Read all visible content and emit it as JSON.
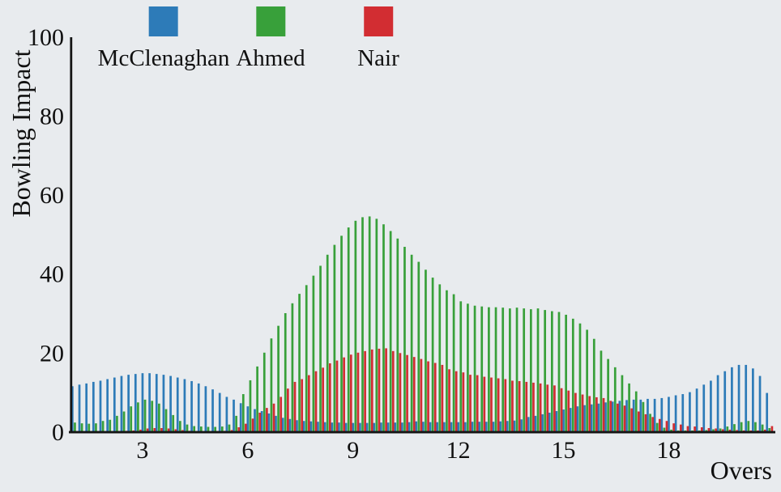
{
  "figure": {
    "background_color": "#e8ebee",
    "text_color": "#101010",
    "axis_color": "#141414"
  },
  "legend": {
    "items": [
      {
        "label": "McClenaghan",
        "color": "#2d7bb8"
      },
      {
        "label": "Ahmed",
        "color": "#38a03a"
      },
      {
        "label": "Nair",
        "color": "#d22d32"
      }
    ]
  },
  "chart_data": {
    "type": "bar",
    "title": "",
    "xlabel": "Overs",
    "ylabel": "Bowling Impact",
    "grid": false,
    "legend_position": "top",
    "xlim": [
      0.8,
      21.0
    ],
    "ylim": [
      0,
      100
    ],
    "xticks": [
      3,
      6,
      9,
      12,
      15,
      18
    ],
    "yticks": [
      0,
      20,
      40,
      60,
      80,
      100
    ],
    "x_start": 1.0,
    "x_step": 0.2,
    "x": [
      1.0,
      1.2,
      1.4,
      1.6,
      1.8,
      2.0,
      2.2,
      2.4,
      2.6,
      2.8,
      3.0,
      3.2,
      3.4,
      3.6,
      3.8,
      4.0,
      4.2,
      4.4,
      4.6,
      4.8,
      5.0,
      5.2,
      5.4,
      5.6,
      5.8,
      6.0,
      6.2,
      6.4,
      6.6,
      6.8,
      7.0,
      7.2,
      7.4,
      7.6,
      7.8,
      8.0,
      8.2,
      8.4,
      8.6,
      8.8,
      9.0,
      9.2,
      9.4,
      9.6,
      9.8,
      10.0,
      10.2,
      10.4,
      10.6,
      10.8,
      11.0,
      11.2,
      11.4,
      11.6,
      11.8,
      12.0,
      12.2,
      12.4,
      12.6,
      12.8,
      13.0,
      13.2,
      13.4,
      13.6,
      13.8,
      14.0,
      14.2,
      14.4,
      14.6,
      14.8,
      15.0,
      15.2,
      15.4,
      15.6,
      15.8,
      16.0,
      16.2,
      16.4,
      16.6,
      16.8,
      17.0,
      17.2,
      17.4,
      17.6,
      17.8,
      18.0,
      18.2,
      18.4,
      18.6,
      18.8,
      19.0,
      19.2,
      19.4,
      19.6,
      19.8,
      20.0,
      20.2,
      20.4,
      20.6,
      20.8
    ],
    "series": [
      {
        "name": "McClenaghan",
        "color": "#2d7bb8",
        "values": [
          11.5,
          11.9,
          12.2,
          12.6,
          12.9,
          13.3,
          13.7,
          14.1,
          14.4,
          14.6,
          14.8,
          14.8,
          14.6,
          14.4,
          14.1,
          13.7,
          13.3,
          12.8,
          12.2,
          11.5,
          10.7,
          9.8,
          8.8,
          8.1,
          7.2,
          6.4,
          5.7,
          5.2,
          4.6,
          4.0,
          3.5,
          3.2,
          2.9,
          2.7,
          2.6,
          2.5,
          2.4,
          2.3,
          2.3,
          2.2,
          2.2,
          2.2,
          2.2,
          2.2,
          2.3,
          2.3,
          2.3,
          2.3,
          2.4,
          2.6,
          2.5,
          2.4,
          2.4,
          2.4,
          2.4,
          2.4,
          2.4,
          2.5,
          2.5,
          2.5,
          2.5,
          2.6,
          2.7,
          2.8,
          3.1,
          3.7,
          4.0,
          4.4,
          4.8,
          5.2,
          5.6,
          6.0,
          6.4,
          6.7,
          6.9,
          7.1,
          7.4,
          7.6,
          7.8,
          8.0,
          8.1,
          8.1,
          8.3,
          8.3,
          8.5,
          8.8,
          9.2,
          9.5,
          10.0,
          10.9,
          11.9,
          12.9,
          14.3,
          15.3,
          16.3,
          16.9,
          16.9,
          16.0,
          14.1,
          9.8
        ]
      },
      {
        "name": "Ahmed",
        "color": "#38a03a",
        "values": [
          2.3,
          2.1,
          2.0,
          2.1,
          2.7,
          3.0,
          4.0,
          5.1,
          6.4,
          7.4,
          8.1,
          7.8,
          7.1,
          5.7,
          4.2,
          2.7,
          1.8,
          1.4,
          1.3,
          1.2,
          1.2,
          1.3,
          1.8,
          4.0,
          9.5,
          13.0,
          16.5,
          20.0,
          23.6,
          26.8,
          30.0,
          32.5,
          34.9,
          37.1,
          39.5,
          42.0,
          44.8,
          47.3,
          49.6,
          51.7,
          53.4,
          54.3,
          54.5,
          53.9,
          52.5,
          50.8,
          48.9,
          46.8,
          44.8,
          43.0,
          41.0,
          39.0,
          37.3,
          35.8,
          34.8,
          33.0,
          32.4,
          31.9,
          31.7,
          31.5,
          31.5,
          31.4,
          31.2,
          31.4,
          31.2,
          31.0,
          31.2,
          30.8,
          30.5,
          30.3,
          29.6,
          28.6,
          27.4,
          25.8,
          23.5,
          20.5,
          18.4,
          16.3,
          14.3,
          12.2,
          10.2,
          7.5,
          4.5,
          2.2,
          1.0,
          0.5,
          0.3,
          0.3,
          0.3,
          0.3,
          0.4,
          0.6,
          0.8,
          1.3,
          1.9,
          2.4,
          2.7,
          2.4,
          1.8,
          0.9
        ]
      },
      {
        "name": "Nair",
        "color": "#d22d32",
        "values": [
          0,
          0,
          0,
          0,
          0,
          0,
          0.1,
          0.2,
          0.3,
          0.5,
          0.8,
          0.9,
          0.9,
          0.8,
          0.6,
          0.4,
          0.2,
          0.1,
          0.1,
          0.1,
          0.1,
          0.2,
          0.4,
          1.1,
          2.0,
          3.3,
          4.8,
          6.0,
          7.1,
          8.8,
          10.9,
          12.6,
          13.3,
          14.3,
          15.3,
          16.2,
          17.3,
          18.0,
          18.8,
          19.5,
          20.0,
          20.4,
          20.8,
          21.0,
          21.1,
          20.4,
          19.9,
          19.4,
          18.9,
          18.4,
          17.8,
          17.4,
          16.9,
          15.8,
          15.3,
          15.0,
          14.4,
          14.3,
          13.9,
          13.7,
          13.5,
          13.3,
          12.9,
          12.8,
          12.6,
          12.4,
          12.2,
          11.9,
          11.7,
          11.0,
          10.4,
          9.8,
          9.4,
          9.0,
          8.7,
          8.5,
          7.8,
          7.1,
          6.6,
          5.9,
          5.1,
          4.4,
          3.7,
          3.2,
          2.7,
          2.1,
          1.8,
          1.4,
          1.3,
          1.1,
          0.9,
          0.8,
          0.6,
          0.5,
          0.4,
          0.3,
          0.3,
          0.3,
          0.5,
          1.4
        ]
      }
    ]
  }
}
